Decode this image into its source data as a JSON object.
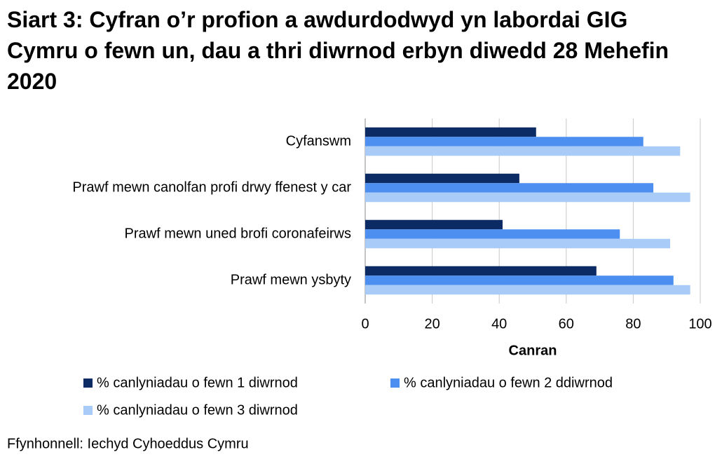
{
  "chart_data": {
    "type": "barh",
    "title": "Siart 3: Cyfran o’r profion a awdurdodwyd yn labordai GIG Cymru o fewn un, dau a thri diwrnod erbyn diwedd 28 Mehefin 2020",
    "categories": [
      "Cyfanswm",
      "Prawf mewn canolfan profi drwy ffenest y car",
      "Prawf mewn uned brofi coronafeirws",
      "Prawf mewn ysbyty"
    ],
    "series": [
      {
        "name": "% canlyniadau o fewn 1 diwrnod",
        "color": "#0c2a63",
        "values": [
          51,
          46,
          41,
          69
        ]
      },
      {
        "name": "% canlyniadau o fewn 2 ddiwrnod",
        "color": "#4c8ff0",
        "values": [
          83,
          86,
          76,
          92
        ]
      },
      {
        "name": "% canlyniadau o fewn 3 diwrnod",
        "color": "#a9cbf8",
        "values": [
          94,
          97,
          91,
          97
        ]
      }
    ],
    "xlabel": "Canran",
    "xlim": [
      0,
      100
    ],
    "xticks": [
      0,
      20,
      40,
      60,
      80,
      100
    ],
    "grid": true,
    "source": "Ffynhonnell: Iechyd Cyhoeddus Cymru"
  }
}
